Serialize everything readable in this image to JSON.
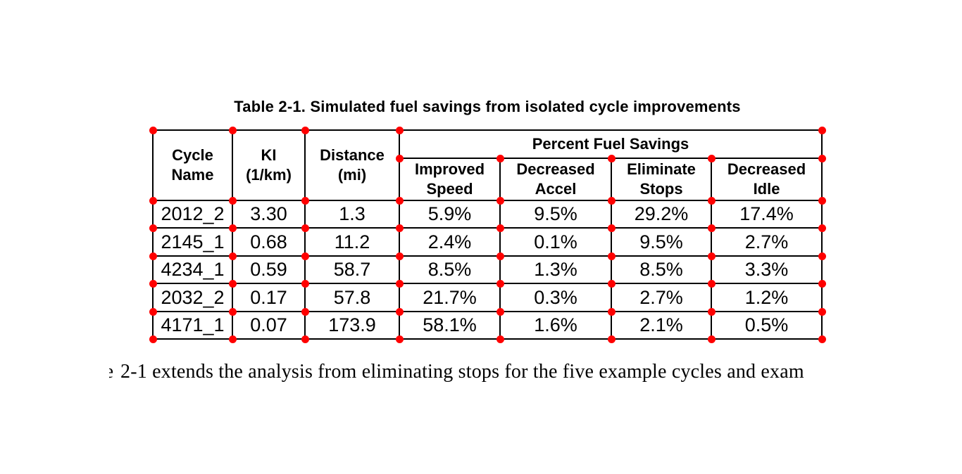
{
  "page": {
    "background": "#ffffff"
  },
  "table": {
    "title": "Table 2-1. Simulated fuel savings from isolated cycle improvements",
    "group_header": "Percent Fuel Savings",
    "col_headers": [
      {
        "line1": "Cycle",
        "line2": "Name"
      },
      {
        "line1": "KI",
        "line2": "(1/km)"
      },
      {
        "line1": "Distance",
        "line2": "(mi)"
      },
      {
        "line1": "Improved",
        "line2": "Speed"
      },
      {
        "line1": "Decreased",
        "line2": "Accel"
      },
      {
        "line1": "Eliminate",
        "line2": "Stops"
      },
      {
        "line1": "Decreased",
        "line2": "Idle"
      }
    ],
    "rows": [
      [
        "2012_2",
        "3.30",
        "1.3",
        "5.9%",
        "9.5%",
        "29.2%",
        "17.4%"
      ],
      [
        "2145_1",
        "0.68",
        "11.2",
        "2.4%",
        "0.1%",
        "9.5%",
        "2.7%"
      ],
      [
        "4234_1",
        "0.59",
        "58.7",
        "8.5%",
        "1.3%",
        "8.5%",
        "3.3%"
      ],
      [
        "2032_2",
        "0.17",
        "57.8",
        "21.7%",
        "0.3%",
        "2.7%",
        "1.2%"
      ],
      [
        "4171_1",
        "0.07",
        "173.9",
        "58.1%",
        "1.6%",
        "2.1%",
        "0.5%"
      ]
    ]
  },
  "body_text": {
    "fragment": "e",
    "line": "2-1 extends the analysis from eliminating stops for the five example cycles and exam"
  },
  "markers": {
    "color": "#ff0000"
  }
}
